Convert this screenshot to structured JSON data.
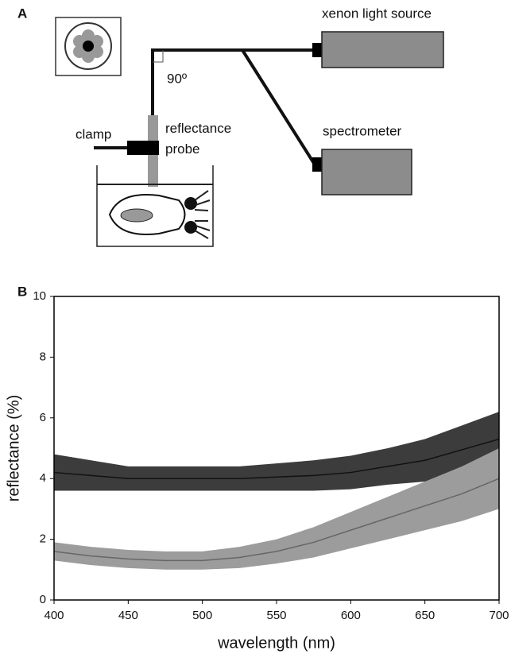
{
  "panels": [
    "A",
    "B"
  ],
  "diagram": {
    "source": "xenon light source",
    "detector": "spectrometer",
    "probe": "reflectance\nprobe",
    "clamp": "clamp",
    "angle": "90º"
  },
  "chart_data": {
    "type": "band-line",
    "xlabel": "wavelength (nm)",
    "ylabel": "reflectance (%)",
    "x": [
      400,
      425,
      450,
      475,
      500,
      525,
      550,
      575,
      600,
      625,
      650,
      675,
      700
    ],
    "series": [
      {
        "color": "#111111",
        "band_color": "#3c3c3c",
        "values": [
          4.2,
          4.1,
          4.0,
          4.0,
          4.0,
          4.0,
          4.05,
          4.1,
          4.2,
          4.4,
          4.6,
          4.95,
          5.3
        ],
        "errors": [
          0.6,
          0.5,
          0.4,
          0.4,
          0.4,
          0.4,
          0.45,
          0.5,
          0.55,
          0.6,
          0.7,
          0.8,
          0.9
        ]
      },
      {
        "color": "#666666",
        "band_color": "#9c9c9c",
        "values": [
          1.6,
          1.45,
          1.35,
          1.3,
          1.3,
          1.4,
          1.6,
          1.9,
          2.3,
          2.7,
          3.1,
          3.5,
          4.0
        ],
        "errors": [
          0.3,
          0.3,
          0.3,
          0.3,
          0.3,
          0.35,
          0.4,
          0.5,
          0.6,
          0.7,
          0.8,
          0.9,
          1.0
        ]
      }
    ],
    "xlim": [
      400,
      700
    ],
    "xticks": [
      400,
      450,
      500,
      550,
      600,
      650,
      700
    ],
    "ylim": [
      0,
      10
    ],
    "yticks": [
      0,
      2,
      4,
      6,
      8,
      10
    ]
  }
}
